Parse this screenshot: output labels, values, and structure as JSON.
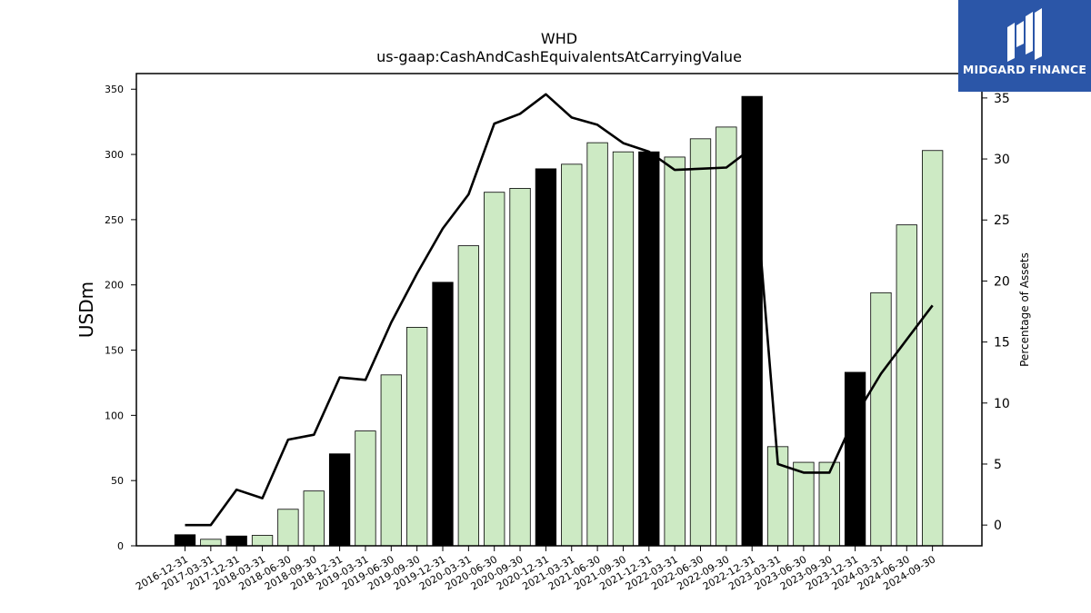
{
  "logo": {
    "name": "MIDGARD FINANCE"
  },
  "chart_data": {
    "type": "bar",
    "title": "WHD",
    "subtitle": "us-gaap:CashAndCashEquivalentsAtCarryingValue",
    "ylabel": "USDm",
    "y2label": "Percentage of Assets",
    "ylim": [
      0,
      362
    ],
    "y2lim": [
      -1.7,
      37.0
    ],
    "yticks": [
      0,
      50,
      100,
      150,
      200,
      250,
      300,
      350
    ],
    "y2ticks": [
      0,
      5,
      10,
      15,
      20,
      25,
      30,
      35
    ],
    "categories": [
      "2016-12-31",
      "2017-03-31",
      "2017-12-31",
      "2018-03-31",
      "2018-06-30",
      "2018-09-30",
      "2018-12-31",
      "2019-03-31",
      "2019-06-30",
      "2019-09-30",
      "2019-12-31",
      "2020-03-31",
      "2020-06-30",
      "2020-09-30",
      "2020-12-31",
      "2021-03-31",
      "2021-06-30",
      "2021-09-30",
      "2021-12-31",
      "2022-03-31",
      "2022-06-30",
      "2022-09-30",
      "2022-12-31",
      "2023-03-31",
      "2023-06-30",
      "2023-09-30",
      "2023-12-31",
      "2024-03-31",
      "2024-06-30",
      "2024-09-30"
    ],
    "series": [
      {
        "type": "bar",
        "values": [
          8.5,
          5,
          7.5,
          8,
          28,
          42,
          70.5,
          88,
          131,
          167.5,
          202,
          230,
          271,
          274,
          289,
          292.5,
          309,
          302,
          302,
          298,
          312,
          321,
          344.5,
          76,
          64,
          64,
          133,
          194,
          246,
          303
        ],
        "highlight": [
          true,
          false,
          true,
          false,
          false,
          false,
          true,
          false,
          false,
          false,
          true,
          false,
          false,
          false,
          true,
          false,
          false,
          false,
          true,
          false,
          false,
          false,
          true,
          false,
          false,
          false,
          true,
          false,
          false,
          false
        ]
      },
      {
        "type": "line",
        "axis": "right",
        "values": [
          0,
          0,
          2.9,
          2.2,
          7.0,
          7.4,
          12.1,
          11.9,
          16.6,
          20.6,
          24.3,
          27.1,
          32.9,
          33.7,
          35.3,
          33.4,
          32.8,
          31.3,
          30.6,
          29.1,
          29.2,
          29.3,
          30.9,
          5.0,
          4.3,
          4.3,
          8.9,
          12.4,
          15.2,
          18.0
        ]
      }
    ],
    "colors": {
      "bar_highlight": "#000000",
      "bar_normal": "#cdeac4",
      "bar_edge": "#000000",
      "line": "#000000"
    },
    "grid": false
  }
}
